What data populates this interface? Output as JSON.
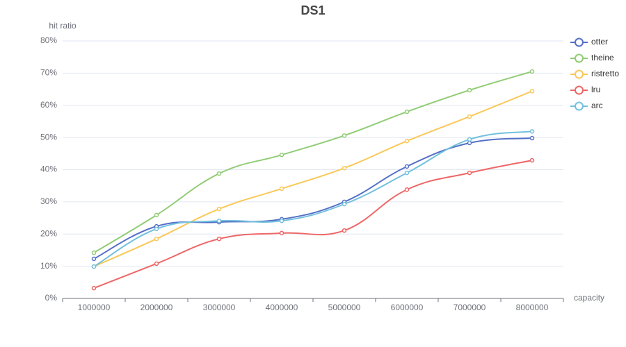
{
  "chart_data": {
    "type": "line",
    "title": "DS1",
    "y_label": "hit ratio",
    "x_label": "capacity",
    "categories": [
      "1000000",
      "2000000",
      "3000000",
      "4000000",
      "5000000",
      "6000000",
      "7000000",
      "8000000"
    ],
    "series": [
      {
        "name": "otter",
        "color": "#5470c6",
        "values": [
          12.3,
          22.4,
          23.7,
          24.6,
          30.0,
          41.0,
          48.3,
          49.8
        ]
      },
      {
        "name": "theine",
        "color": "#91cc75",
        "values": [
          14.2,
          25.9,
          38.8,
          44.6,
          50.6,
          58.0,
          64.7,
          70.5
        ]
      },
      {
        "name": "ristretto",
        "color": "#fac858",
        "values": [
          9.9,
          18.5,
          27.8,
          34.1,
          40.5,
          48.9,
          56.5,
          64.4
        ]
      },
      {
        "name": "lru",
        "color": "#ee6666",
        "values": [
          3.2,
          10.8,
          18.5,
          20.3,
          21.1,
          33.8,
          39.0,
          42.9
        ]
      },
      {
        "name": "arc",
        "color": "#73c0de",
        "values": [
          9.9,
          21.6,
          24.1,
          24.1,
          29.3,
          39.0,
          49.4,
          51.9
        ]
      }
    ],
    "ylim": [
      0,
      80
    ],
    "yticks": [
      {
        "value": 0,
        "label": "0%"
      },
      {
        "value": 10,
        "label": "10%"
      },
      {
        "value": 20,
        "label": "20%"
      },
      {
        "value": 30,
        "label": "30%"
      },
      {
        "value": 40,
        "label": "40%"
      },
      {
        "value": 50,
        "label": "50%"
      },
      {
        "value": 60,
        "label": "60%"
      },
      {
        "value": 70,
        "label": "70%"
      },
      {
        "value": 80,
        "label": "80%"
      }
    ],
    "grid": true,
    "smooth": true,
    "legend": "right"
  }
}
